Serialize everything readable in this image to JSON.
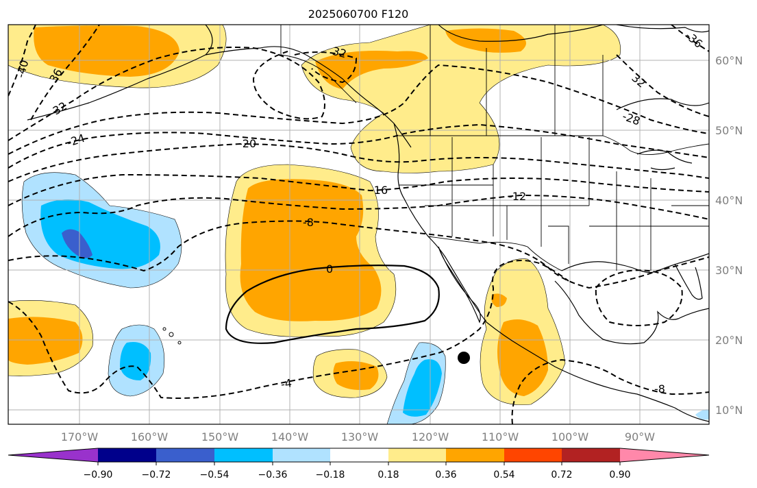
{
  "title": "2025060700 F120",
  "lon_ticks": [
    "170°W",
    "160°W",
    "150°W",
    "140°W",
    "130°W",
    "120°W",
    "110°W",
    "100°W",
    "90°W"
  ],
  "lat_ticks": [
    "60°N",
    "50°N",
    "40°N",
    "30°N",
    "20°N",
    "10°N"
  ],
  "contour_labels": {
    "m40": "-40",
    "m36a": "36",
    "m36b": "-36",
    "m32a": "32",
    "m32b": "-32",
    "m32c": "32",
    "m28": "-28",
    "m24": "-24",
    "m20": "-20",
    "m16": "-16",
    "m12": "-12",
    "m8": "-8",
    "m8b": "-8",
    "zero": "0",
    "m4": "-4"
  },
  "colorbar": {
    "tick_labels": [
      "−0.90",
      "−0.72",
      "−0.54",
      "−0.36",
      "−0.18",
      "0.18",
      "0.36",
      "0.54",
      "0.72",
      "0.90"
    ],
    "colors": [
      "#9932cc",
      "#00008b",
      "#3a5fcd",
      "#00bfff",
      "#b0e2ff",
      "#ffffff",
      "#ffec8b",
      "#ffa500",
      "#ff4500",
      "#b22222",
      "#ff88aa"
    ]
  },
  "marker": "black-dot"
}
